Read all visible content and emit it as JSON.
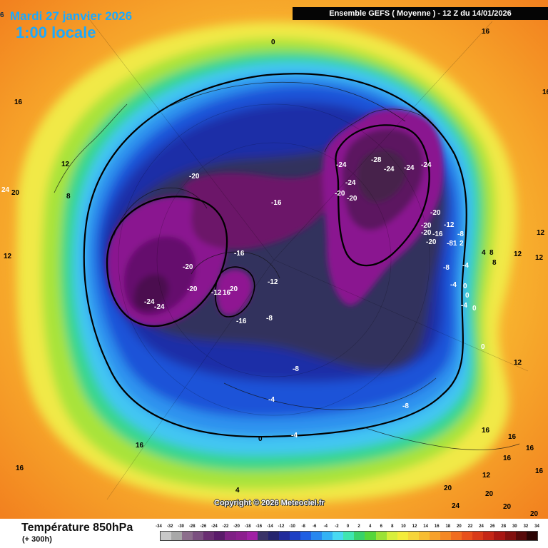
{
  "header": {
    "date": "Mardi 27 janvier 2026",
    "local_time": "1:00 locale",
    "lead_label": "6",
    "model_run": "Ensemble GEFS  ( Moyenne )  -  12 Z du 14/01/2026",
    "copyright": "Copyright © 2026 Meteociel.fr"
  },
  "footer": {
    "title": "Température 850hPa",
    "subtitle": "(+ 300h)"
  },
  "legend": {
    "labels": [
      "-34",
      "-32",
      "-30",
      "-28",
      "-26",
      "-24",
      "-22",
      "-20",
      "-18",
      "-16",
      "-14",
      "-12",
      "-10",
      "-8",
      "-6",
      "-4",
      "-2",
      "0",
      "2",
      "4",
      "6",
      "8",
      "10",
      "12",
      "14",
      "16",
      "18",
      "20",
      "22",
      "24",
      "26",
      "28",
      "30",
      "32",
      "34"
    ],
    "colors": [
      "#c8c8c8",
      "#a8a8a8",
      "#8c6e8c",
      "#7b4f80",
      "#6a2d72",
      "#5a1a6a",
      "#7f1f85",
      "#8c1e8e",
      "#a020a5",
      "#3a3368",
      "#25246e",
      "#222b9b",
      "#1d3fc4",
      "#1f5fe3",
      "#2787f0",
      "#33b2f4",
      "#48d9f2",
      "#3fe6b0",
      "#38d26a",
      "#55d63a",
      "#9be236",
      "#d7ef3c",
      "#f4ec3a",
      "#f7d53a",
      "#f8bd32",
      "#f7a12b",
      "#f48824",
      "#f06c1f",
      "#e8501b",
      "#d93a18",
      "#c52616",
      "#a81612",
      "#83100e",
      "#580a0a",
      "#2b0505"
    ]
  },
  "map_labels": [
    {
      "text": "0",
      "color": "dark"
    },
    {
      "text": "16",
      "color": "dark"
    },
    {
      "text": "16",
      "color": "dark"
    },
    {
      "text": "12",
      "color": "dark"
    },
    {
      "text": "24",
      "color": "light"
    },
    {
      "text": "20",
      "color": "dark"
    },
    {
      "text": "8",
      "color": "dark"
    },
    {
      "text": "12",
      "color": "dark"
    },
    {
      "text": "12",
      "color": "dark"
    },
    {
      "text": "-20",
      "color": "light"
    },
    {
      "text": "-16",
      "color": "light"
    },
    {
      "text": "-16",
      "color": "light"
    },
    {
      "text": "-20",
      "color": "light"
    },
    {
      "text": "-20",
      "color": "light"
    },
    {
      "text": "-24",
      "color": "light"
    },
    {
      "text": "-24",
      "color": "light"
    },
    {
      "text": "-12",
      "color": "light"
    },
    {
      "text": "16",
      "color": "light"
    },
    {
      "text": "20",
      "color": "light"
    },
    {
      "text": "-16",
      "color": "light"
    },
    {
      "text": "-12",
      "color": "light"
    },
    {
      "text": "-8",
      "color": "light"
    },
    {
      "text": "-28",
      "color": "light"
    },
    {
      "text": "-24",
      "color": "light"
    },
    {
      "text": "-24",
      "color": "light"
    },
    {
      "text": "-24",
      "color": "light"
    },
    {
      "text": "-24",
      "color": "light"
    },
    {
      "text": "-24",
      "color": "light"
    },
    {
      "text": "-20",
      "color": "light"
    },
    {
      "text": "-20",
      "color": "light"
    },
    {
      "text": "-20",
      "color": "light"
    },
    {
      "text": "-20",
      "color": "light"
    },
    {
      "text": "-12",
      "color": "light"
    },
    {
      "text": "-20",
      "color": "light"
    },
    {
      "text": "-16",
      "color": "light"
    },
    {
      "text": "-8",
      "color": "light"
    },
    {
      "text": "-20",
      "color": "light"
    },
    {
      "text": "-81",
      "color": "light"
    },
    {
      "text": "2",
      "color": "light"
    },
    {
      "text": "-8",
      "color": "light"
    },
    {
      "text": "-4",
      "color": "light"
    },
    {
      "text": "-4",
      "color": "light"
    },
    {
      "text": "0",
      "color": "light"
    },
    {
      "text": "-4",
      "color": "light"
    },
    {
      "text": "0",
      "color": "light"
    },
    {
      "text": "0",
      "color": "light"
    },
    {
      "text": "0",
      "color": "light"
    },
    {
      "text": "4",
      "color": "dark"
    },
    {
      "text": "8",
      "color": "dark"
    },
    {
      "text": "12",
      "color": "dark"
    },
    {
      "text": "12",
      "color": "dark"
    },
    {
      "text": "8",
      "color": "dark"
    },
    {
      "text": "12",
      "color": "dark"
    },
    {
      "text": "16",
      "color": "dark"
    },
    {
      "text": "16",
      "color": "dark"
    },
    {
      "text": "16",
      "color": "dark"
    },
    {
      "text": "16",
      "color": "dark"
    },
    {
      "text": "12",
      "color": "dark"
    },
    {
      "text": "16",
      "color": "dark"
    },
    {
      "text": "20",
      "color": "dark"
    },
    {
      "text": "20",
      "color": "dark"
    },
    {
      "text": "24",
      "color": "dark"
    },
    {
      "text": "20",
      "color": "dark"
    },
    {
      "text": "20",
      "color": "dark"
    },
    {
      "text": "16",
      "color": "dark"
    },
    {
      "text": "-8",
      "color": "light"
    },
    {
      "text": "-4",
      "color": "light"
    },
    {
      "text": "-4",
      "color": "light"
    },
    {
      "text": "0",
      "color": "dark"
    },
    {
      "text": "-8",
      "color": "light"
    },
    {
      "text": "4",
      "color": "dark"
    },
    {
      "text": "16",
      "color": "dark"
    },
    {
      "text": "16",
      "color": "dark"
    }
  ]
}
